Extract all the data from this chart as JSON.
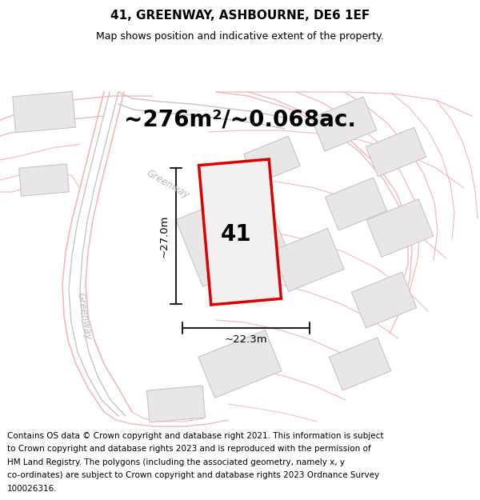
{
  "title": "41, GREENWAY, ASHBOURNE, DE6 1EF",
  "subtitle": "Map shows position and indicative extent of the property.",
  "area_text": "~276m²/~0.068ac.",
  "dim_width": "~22.3m",
  "dim_height": "~27.0m",
  "plot_label": "41",
  "road_label": "Greenway",
  "footer_lines": [
    "Contains OS data © Crown copyright and database right 2021. This information is subject",
    "to Crown copyright and database rights 2023 and is reproduced with the permission of",
    "HM Land Registry. The polygons (including the associated geometry, namely x, y",
    "co-ordinates) are subject to Crown copyright and database rights 2023 Ordnance Survey",
    "100026316."
  ],
  "map_bg": "#faf9f9",
  "plot_fill": "#f2f0f0",
  "plot_edge": "#dd0000",
  "building_fill": "#e8e6e6",
  "building_edge": "#c8c5c5",
  "road_pink_color": "#f5b8b8",
  "road_gray_color": "#c8c5c5",
  "road_label_color": "#bbbaba",
  "dim_line_color": "#222222",
  "title_fontsize": 11,
  "subtitle_fontsize": 9,
  "area_fontsize": 20,
  "label_fontsize": 20,
  "dim_fontsize": 9.5,
  "road_label_fontsize": 8.5,
  "footer_fontsize": 7.5
}
